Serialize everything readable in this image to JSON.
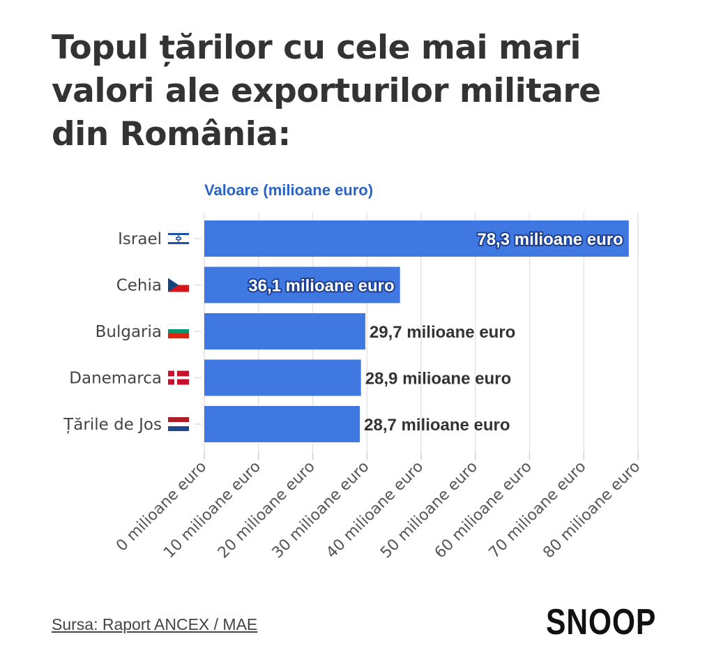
{
  "title": "Topul țărilor cu cele mai mari valori ale exporturilor militare din România:",
  "source": "Sursa: Raport ANCEX / MAE",
  "logo": "SNOOP",
  "colors": {
    "bar": "#3f78e0",
    "label_outline": "#1d3f8f",
    "axis_title": "#2a63c2"
  },
  "chart_data": {
    "type": "bar",
    "orientation": "horizontal",
    "ylabel": "Valoare (milioane euro)",
    "categories": [
      "Israel",
      "Cehia",
      "Bulgaria",
      "Danemarca",
      "Țările de Jos"
    ],
    "flags": [
      "IL",
      "CZ",
      "BG",
      "DK",
      "NL"
    ],
    "values": [
      78.3,
      36.1,
      29.7,
      28.9,
      28.7
    ],
    "data_labels": [
      "78,3 milioane euro",
      "36,1 milioane euro",
      "29,7 milioane euro",
      "28,9 milioane euro",
      "28,7 milioane euro"
    ],
    "label_inside": [
      true,
      true,
      false,
      false,
      false
    ],
    "xlim": [
      0,
      80
    ],
    "xticks": [
      0,
      10,
      20,
      30,
      40,
      50,
      60,
      70,
      80
    ],
    "xtick_labels": [
      "0 milioane euro",
      "10 milioane euro",
      "20 milioane euro",
      "30 milioane euro",
      "40 milioane euro",
      "50 milioane euro",
      "60 milioane euro",
      "70 milioane euro",
      "80 milioane euro"
    ],
    "grid": true
  }
}
